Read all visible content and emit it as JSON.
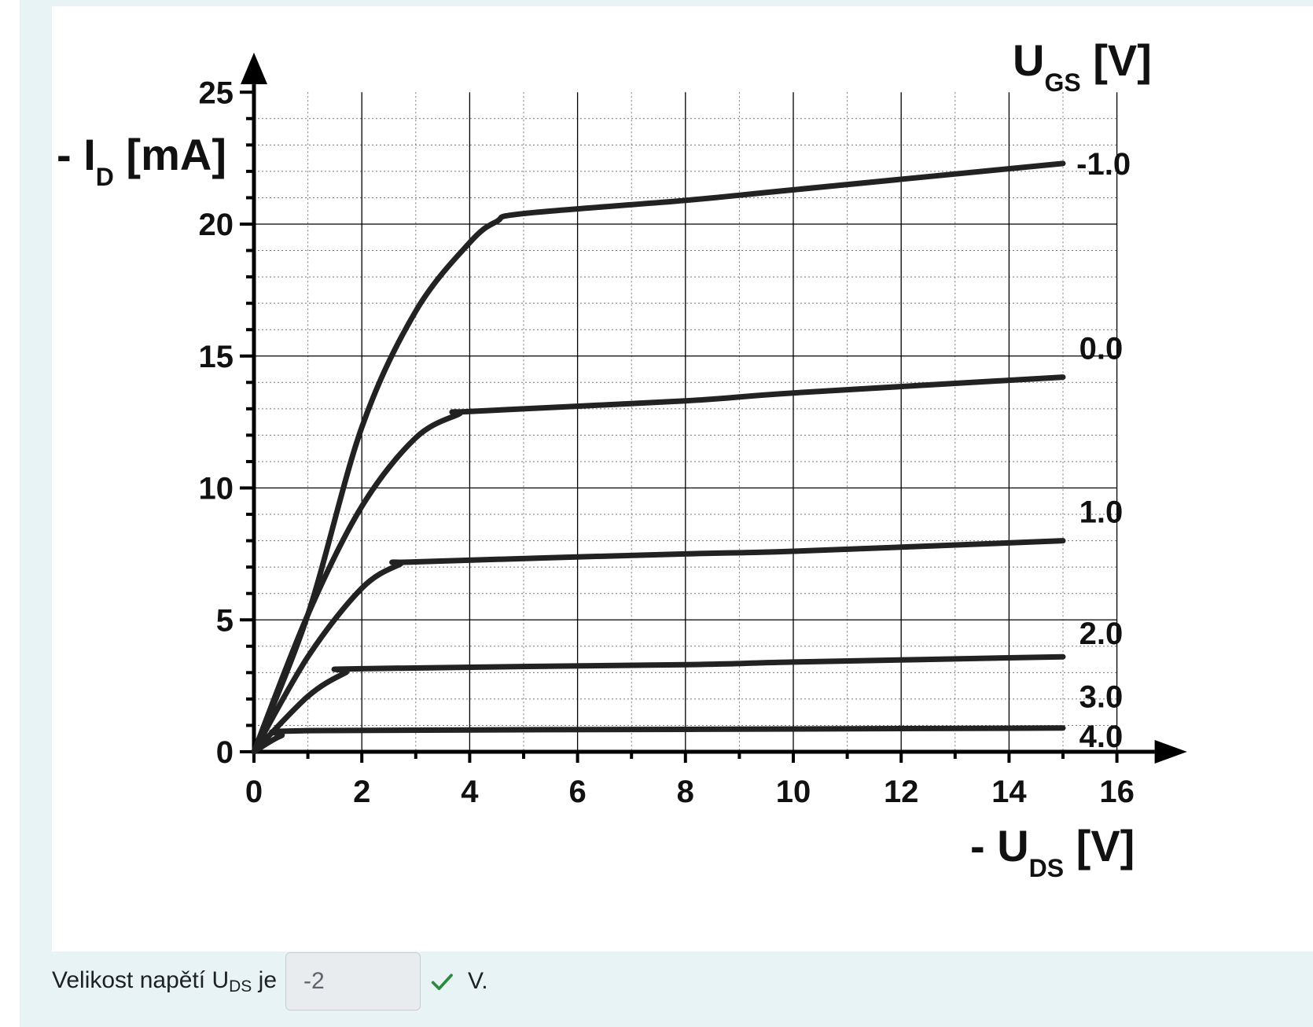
{
  "chart_data": {
    "type": "line",
    "xlabel_main": "- U",
    "xlabel_sub": "DS",
    "xlabel_unit": " [V]",
    "ylabel_main": "- I",
    "ylabel_sub": "D",
    "ylabel_unit": " [mA]",
    "legend_title_main": "U",
    "legend_title_sub": "GS",
    "legend_title_unit": " [V]",
    "xlim": [
      0,
      16
    ],
    "ylim": [
      0,
      25
    ],
    "xticks": [
      0,
      2,
      4,
      6,
      8,
      10,
      12,
      14,
      16
    ],
    "yticks": [
      0,
      5,
      10,
      15,
      20,
      25
    ],
    "grid": true,
    "series": [
      {
        "name": "-1.0",
        "points": [
          [
            0,
            0
          ],
          [
            1,
            5.2
          ],
          [
            2,
            12.3
          ],
          [
            3,
            16.7
          ],
          [
            4,
            19.3
          ],
          [
            4.5,
            20.1
          ],
          [
            5,
            20.4
          ],
          [
            8,
            20.9
          ],
          [
            10,
            21.3
          ],
          [
            15,
            22.3
          ]
        ]
      },
      {
        "name": "0.0",
        "points": [
          [
            0,
            0
          ],
          [
            1,
            5.2
          ],
          [
            2,
            9.3
          ],
          [
            3,
            11.9
          ],
          [
            3.8,
            12.8
          ],
          [
            4,
            12.9
          ],
          [
            8,
            13.3
          ],
          [
            10,
            13.6
          ],
          [
            15,
            14.2
          ]
        ]
      },
      {
        "name": "1.0",
        "points": [
          [
            0,
            0
          ],
          [
            1,
            3.6
          ],
          [
            2,
            6.2
          ],
          [
            2.7,
            7.1
          ],
          [
            3,
            7.2
          ],
          [
            8,
            7.5
          ],
          [
            10,
            7.6
          ],
          [
            15,
            8.0
          ]
        ]
      },
      {
        "name": "2.0",
        "points": [
          [
            0,
            0
          ],
          [
            1,
            2.1
          ],
          [
            1.7,
            3.0
          ],
          [
            2,
            3.15
          ],
          [
            8,
            3.3
          ],
          [
            10,
            3.4
          ],
          [
            15,
            3.6
          ]
        ]
      },
      {
        "name": "3.0",
        "points": [
          [
            0,
            0
          ],
          [
            0.5,
            0.6
          ],
          [
            1,
            0.8
          ],
          [
            8,
            0.85
          ],
          [
            15,
            0.9
          ]
        ]
      },
      {
        "name": "4.0",
        "points": []
      }
    ]
  },
  "answer": {
    "label_main": "Velikost napětí U",
    "label_sub": "DS",
    "label_tail": " je",
    "value": "-2",
    "unit": "V."
  }
}
